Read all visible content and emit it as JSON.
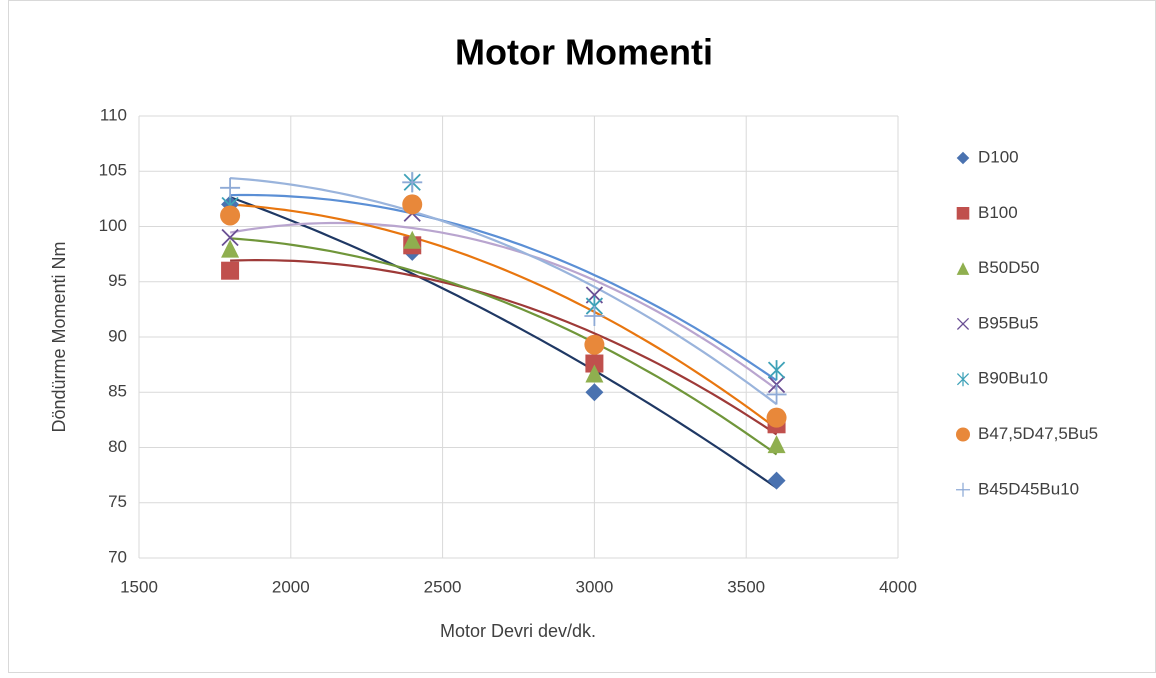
{
  "chart_data": {
    "type": "scatter",
    "title": "Motor Momenti",
    "x_label": "Motor Devri dev/dk.",
    "y_label": "Döndürme Momenti Nm",
    "x": [
      1800,
      2400,
      3000,
      3600
    ],
    "series": [
      {
        "name": "D100",
        "color": "#4a72b0",
        "trend_color": "#1f3864",
        "marker": "diamond",
        "values": [
          102,
          97.7,
          85,
          77
        ]
      },
      {
        "name": "B100",
        "color": "#c0504d",
        "trend_color": "#9e3a38",
        "marker": "square",
        "values": [
          96,
          98.3,
          87.6,
          82.1
        ]
      },
      {
        "name": "B50D50",
        "color": "#8faf4f",
        "trend_color": "#70963a",
        "marker": "triangle",
        "values": [
          98,
          98.8,
          86.7,
          80.3
        ]
      },
      {
        "name": "B95Bu5",
        "color": "#6a4f94",
        "trend_color": "#b9a5cf",
        "marker": "cross",
        "values": [
          99,
          101.2,
          93.8,
          85.7
        ]
      },
      {
        "name": "B90Bu10",
        "color": "#3fa2b8",
        "trend_color": "#5b8fd5",
        "marker": "star",
        "values": [
          101.9,
          104,
          92.8,
          87
        ]
      },
      {
        "name": "B47,5D47,5Bu5",
        "color": "#e8883a",
        "trend_color": "#e8760f",
        "marker": "circle",
        "values": [
          101,
          102,
          89.3,
          82.7
        ]
      },
      {
        "name": "B45D45Bu10",
        "color": "#8eaad6",
        "trend_color": "#9ab4dc",
        "marker": "plus",
        "values": [
          103.5,
          104,
          91.9,
          84.8
        ]
      }
    ],
    "xlim": [
      1500,
      4000
    ],
    "xticks": [
      1500,
      2000,
      2500,
      3000,
      3500,
      4000
    ],
    "ylim": [
      70,
      110
    ],
    "yticks": [
      70,
      75,
      80,
      85,
      90,
      95,
      100,
      105,
      110
    ],
    "grid": true,
    "legend": "right"
  }
}
